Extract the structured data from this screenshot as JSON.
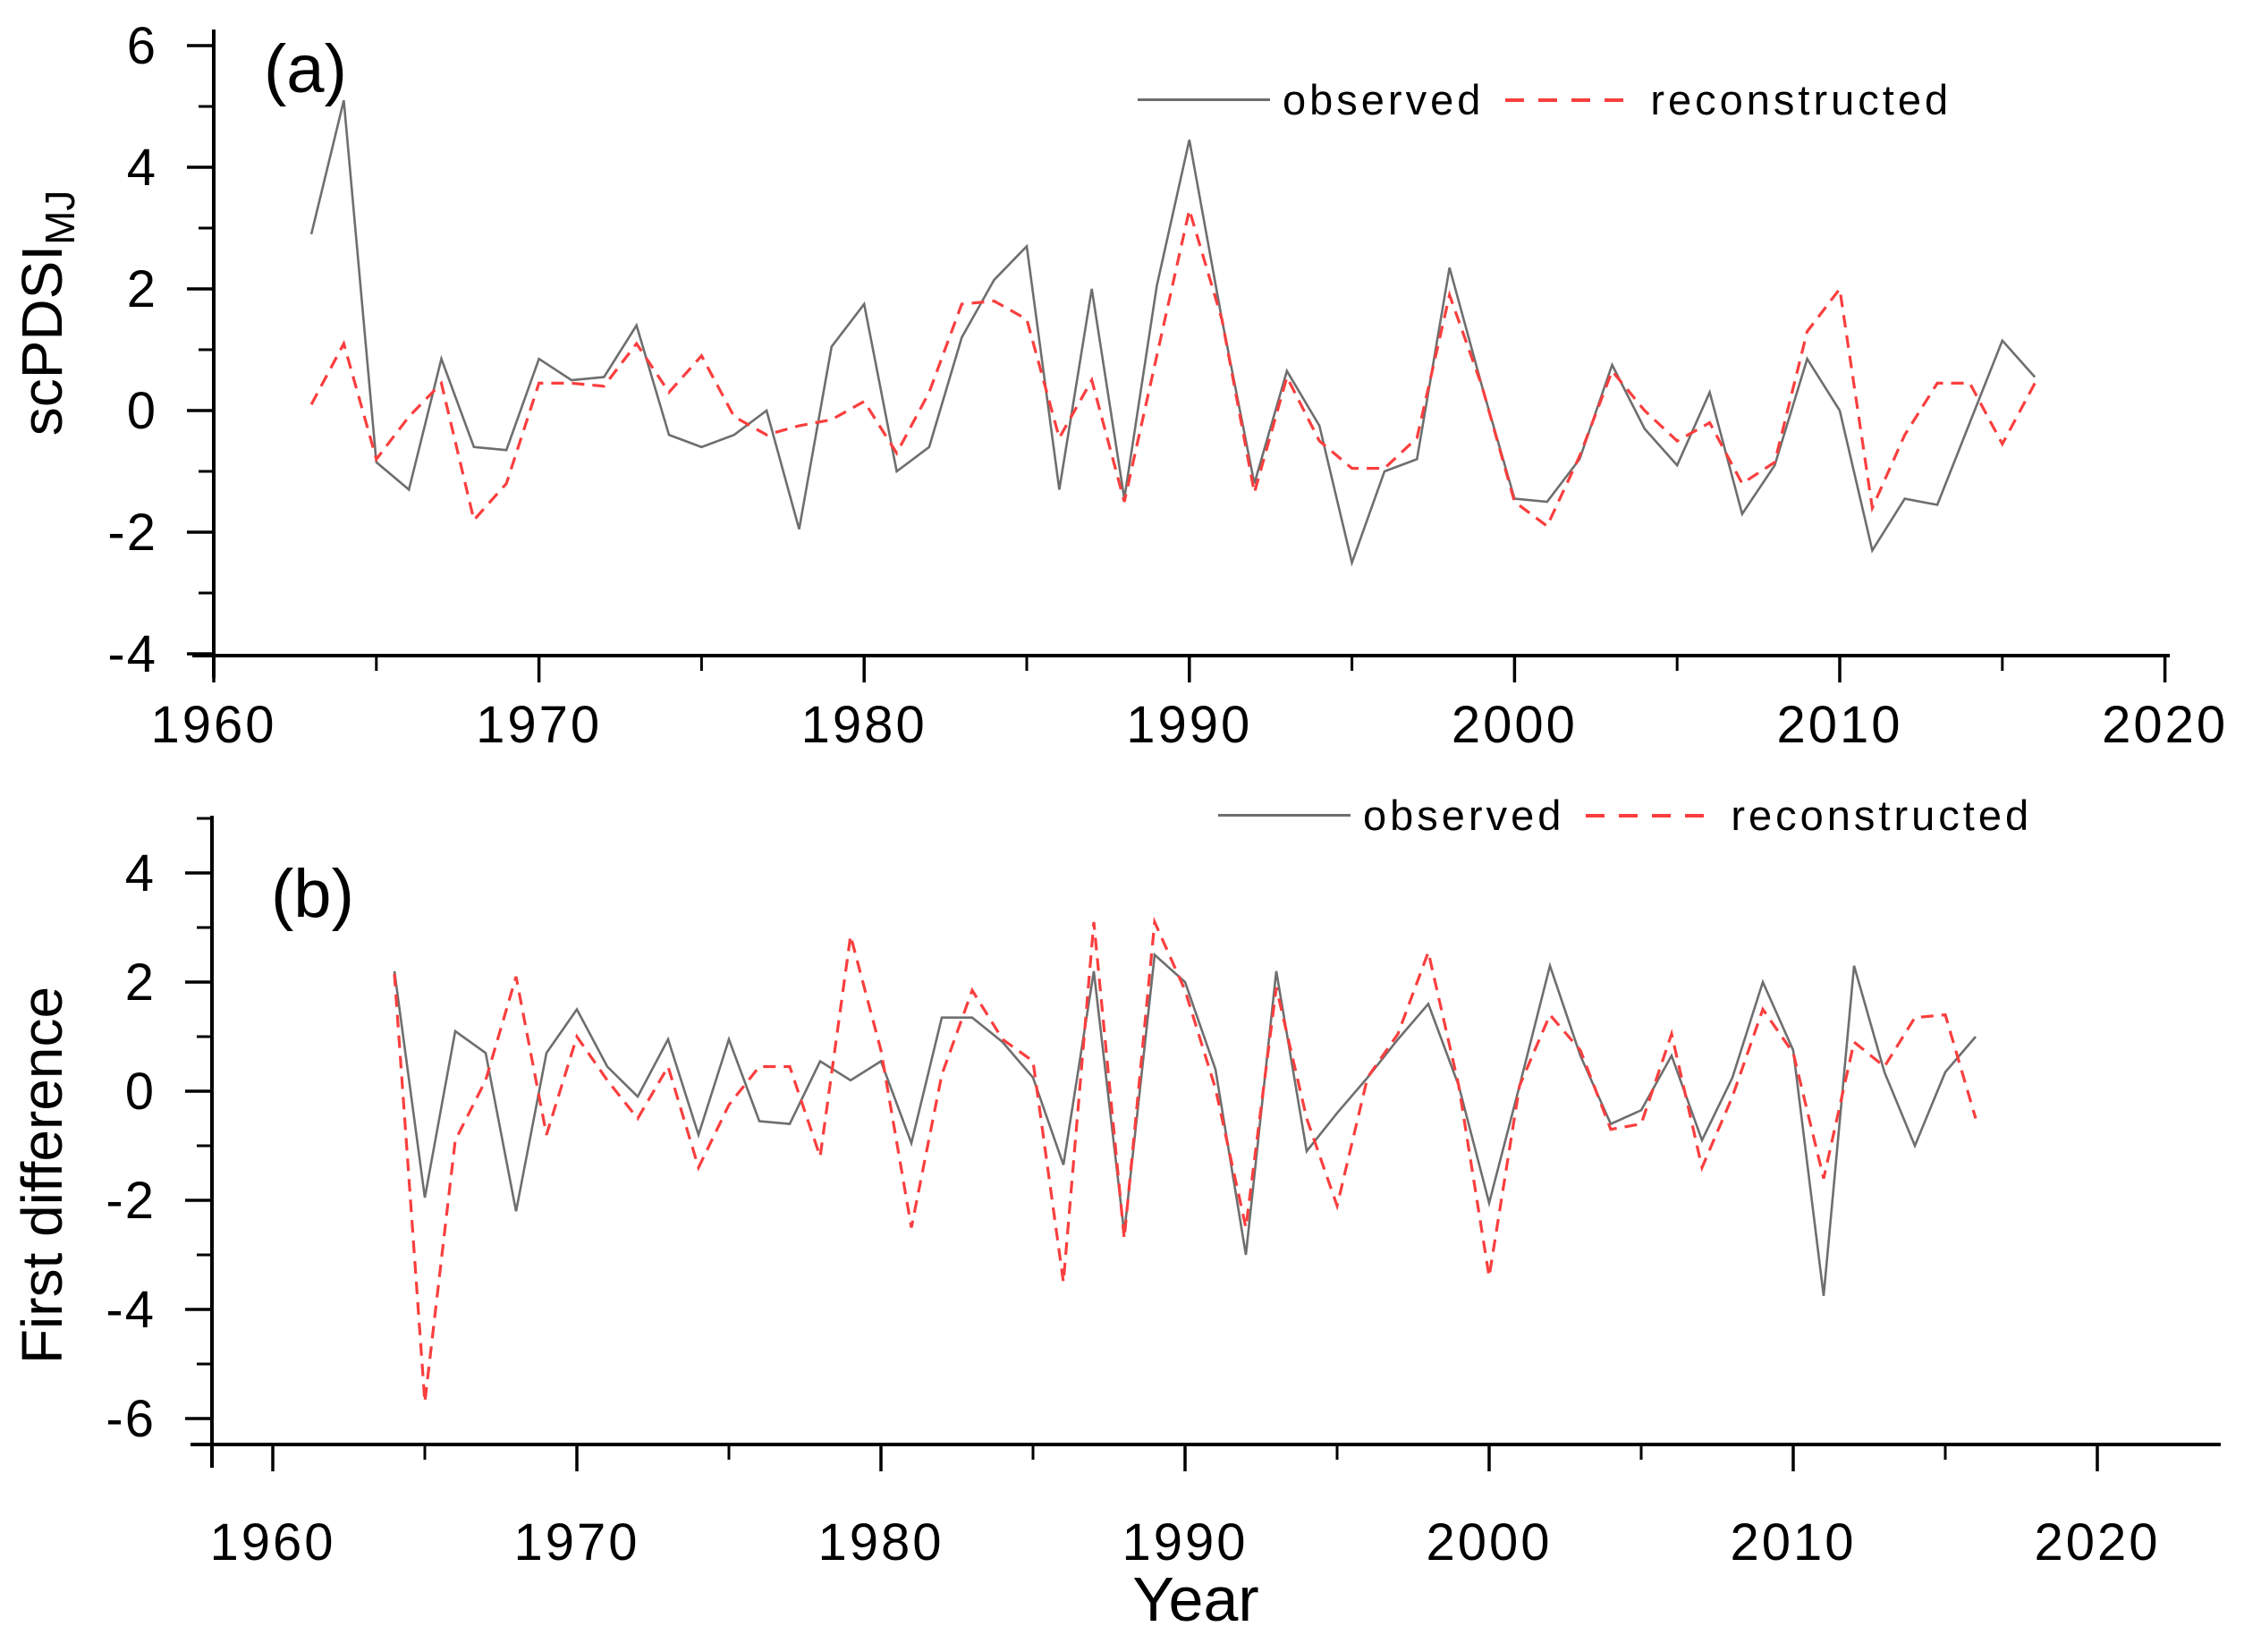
{
  "page": {
    "background": "#ffffff",
    "axis_color": "#000000"
  },
  "chart_data": [
    {
      "id": "a",
      "type": "line",
      "panel_label": "(a)",
      "xlabel": "",
      "ylabel": "scPDSI",
      "ylabel_subscript": "MJ",
      "x_mode": "annual",
      "xlim": [
        1960,
        2020
      ],
      "ylim": [
        -4,
        6.2
      ],
      "grid": false,
      "legend": {
        "position": "top-right",
        "items": [
          "observed",
          "reconstructed"
        ]
      },
      "xticks_major": [
        1960,
        1970,
        1980,
        1990,
        2000,
        2010,
        2020
      ],
      "xticks_minor": [
        1965,
        1975,
        1985,
        1995,
        2005,
        2015
      ],
      "yticks_major": [
        6,
        4,
        2,
        0,
        -2,
        -4
      ],
      "yticks_minor": [
        5,
        3,
        1,
        -1,
        -3
      ],
      "series": [
        {
          "name": "observed",
          "style": "solid",
          "color": "#6e6e6e",
          "start_year": 1963,
          "values": [
            2.9,
            5.1,
            -0.85,
            -1.3,
            0.85,
            -0.6,
            -0.65,
            0.85,
            0.5,
            0.55,
            1.4,
            -0.4,
            -0.6,
            -0.4,
            0.0,
            -1.95,
            1.05,
            1.75,
            -1.0,
            -0.6,
            1.2,
            2.15,
            2.7,
            -1.3,
            2.0,
            -1.45,
            2.05,
            4.45,
            1.5,
            -1.2,
            0.65,
            -0.25,
            -2.5,
            -1.0,
            -0.8,
            2.35,
            0.4,
            -1.45,
            -1.5,
            -0.8,
            0.75,
            -0.3,
            -0.9,
            0.3,
            -1.7,
            -0.9,
            0.85,
            0.0,
            -2.3,
            -1.45,
            -1.55,
            -0.2,
            1.15,
            0.55
          ]
        },
        {
          "name": "reconstructed",
          "style": "dashed",
          "color": "#fa3e3e",
          "start_year": 1963,
          "values": [
            0.1,
            1.1,
            -0.8,
            -0.1,
            0.45,
            -1.8,
            -1.2,
            0.45,
            0.45,
            0.4,
            1.1,
            0.3,
            0.9,
            -0.1,
            -0.4,
            -0.25,
            -0.15,
            0.15,
            -0.7,
            0.3,
            1.75,
            1.8,
            1.5,
            -0.45,
            0.5,
            -1.5,
            0.9,
            3.3,
            1.5,
            -1.35,
            0.55,
            -0.5,
            -0.95,
            -0.95,
            -0.45,
            1.9,
            0.4,
            -1.5,
            -1.9,
            -0.75,
            0.65,
            0.0,
            -0.5,
            -0.2,
            -1.2,
            -0.85,
            1.3,
            2.0,
            -1.6,
            -0.4,
            0.45,
            0.45,
            -0.55,
            0.45
          ]
        }
      ]
    },
    {
      "id": "b",
      "type": "line",
      "panel_label": "(b)",
      "xlabel": "Year",
      "ylabel": "First difference",
      "ylabel_subscript": "",
      "x_mode": "annual",
      "xlim": [
        1960,
        2020
      ],
      "ylim": [
        -6.5,
        5
      ],
      "grid": false,
      "legend": {
        "position": "top-right",
        "items": [
          "observed",
          "reconstructed"
        ]
      },
      "xticks_major": [
        1960,
        1970,
        1980,
        1990,
        2000,
        2010,
        2020
      ],
      "xticks_minor": [
        1965,
        1975,
        1985,
        1995,
        2005,
        2015
      ],
      "yticks_major": [
        4,
        2,
        0,
        -2,
        -4,
        -6
      ],
      "yticks_minor": [
        5,
        3,
        1,
        -1,
        -3,
        -5
      ],
      "series": [
        {
          "name": "observed",
          "style": "solid",
          "color": "#6e6e6e",
          "start_year": 1964,
          "values": [
            2.2,
            -1.95,
            1.1,
            0.7,
            -2.2,
            0.7,
            1.5,
            0.45,
            -0.1,
            0.95,
            -0.8,
            0.95,
            -0.55,
            -0.6,
            0.55,
            0.2,
            0.55,
            -0.95,
            1.35,
            1.35,
            0.9,
            0.25,
            -1.35,
            2.2,
            -2.6,
            2.5,
            2.0,
            0.4,
            -3.0,
            2.2,
            -1.1,
            -0.4,
            0.25,
            0.95,
            1.6,
            0.1,
            -2.05,
            0.1,
            2.3,
            0.65,
            -0.6,
            -0.35,
            0.65,
            -0.9,
            0.25,
            2.0,
            0.75,
            -3.75,
            2.3,
            0.35,
            -1.0,
            0.35,
            1.0
          ]
        },
        {
          "name": "reconstructed",
          "style": "dashed",
          "color": "#fa3e3e",
          "start_year": 1964,
          "values": [
            2.15,
            -5.7,
            -0.9,
            0.2,
            2.1,
            -0.8,
            1.0,
            0.2,
            -0.5,
            0.45,
            -1.4,
            -0.25,
            0.45,
            0.45,
            -1.2,
            2.85,
            0.75,
            -2.5,
            0.3,
            1.85,
            0.95,
            0.55,
            -3.5,
            3.1,
            -2.7,
            3.1,
            1.85,
            0.05,
            -2.5,
            1.9,
            -0.5,
            -2.1,
            0.25,
            1.05,
            2.55,
            0.1,
            -3.4,
            0.1,
            1.4,
            0.75,
            -0.7,
            -0.6,
            1.05,
            -1.4,
            -0.1,
            1.5,
            0.7,
            -1.6,
            0.9,
            0.45,
            1.35,
            1.4,
            -0.5
          ]
        }
      ]
    }
  ]
}
